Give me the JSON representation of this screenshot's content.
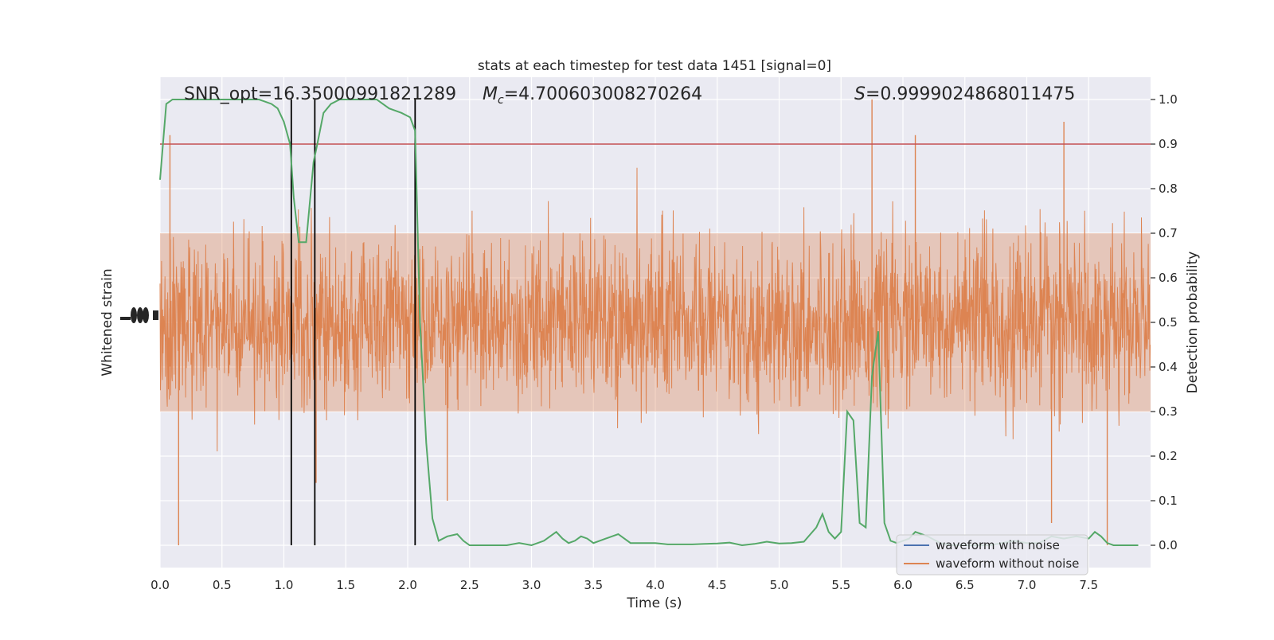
{
  "chart_data": {
    "type": "line",
    "title": "stats at each timestep for test data 1451 [signal=0]",
    "xlabel": "Time (s)",
    "ylabel_left": "Whitened strain",
    "ylabel_right": "Detection probability",
    "xlim": [
      0,
      8
    ],
    "ylim_right": [
      -0.05,
      1.05
    ],
    "grid": true,
    "x_ticks": [
      "0.0",
      "0.5",
      "1.0",
      "1.5",
      "2.0",
      "2.5",
      "3.0",
      "3.5",
      "4.0",
      "4.5",
      "5.0",
      "5.5",
      "6.0",
      "6.5",
      "7.0",
      "7.5"
    ],
    "y_ticks_right": [
      "0.0",
      "0.1",
      "0.2",
      "0.3",
      "0.4",
      "0.5",
      "0.6",
      "0.7",
      "0.8",
      "0.9",
      "1.0"
    ],
    "annotations": {
      "snr": "SNR_opt=16.35000991821289",
      "mc_symbol": "M",
      "mc_sub": "c",
      "mc_value": "=4.700603008270264",
      "s_symbol": "S",
      "s_value": "=0.9999024868011475"
    },
    "threshold": 0.9,
    "vertical_lines_x": [
      1.06,
      1.25,
      2.06
    ],
    "legend": {
      "position": "lower right",
      "entries": [
        {
          "label": "waveform with noise",
          "color": "#4c72b0"
        },
        {
          "label": "waveform without noise",
          "color": "#dd8452"
        }
      ]
    },
    "series": [
      {
        "name": "waveform without noise",
        "color": "#dd8452",
        "envelope": "dense noise centered at 0.5, typical peaks 0.3–0.8, extremes near 0.0 and 1.0"
      },
      {
        "name": "detection probability",
        "color": "#55a868",
        "x": [
          0.0,
          0.05,
          0.1,
          0.2,
          0.3,
          0.4,
          0.5,
          0.6,
          0.7,
          0.8,
          0.9,
          0.95,
          1.0,
          1.05,
          1.08,
          1.12,
          1.18,
          1.24,
          1.27,
          1.32,
          1.38,
          1.45,
          1.55,
          1.65,
          1.75,
          1.85,
          1.95,
          2.02,
          2.06,
          2.1,
          2.15,
          2.2,
          2.25,
          2.32,
          2.4,
          2.45,
          2.5,
          2.6,
          2.7,
          2.8,
          2.9,
          3.0,
          3.1,
          3.15,
          3.2,
          3.25,
          3.3,
          3.35,
          3.4,
          3.45,
          3.5,
          3.55,
          3.6,
          3.65,
          3.7,
          3.8,
          3.9,
          4.0,
          4.1,
          4.2,
          4.3,
          4.4,
          4.5,
          4.6,
          4.7,
          4.8,
          4.9,
          5.0,
          5.1,
          5.2,
          5.3,
          5.35,
          5.4,
          5.45,
          5.5,
          5.55,
          5.6,
          5.65,
          5.7,
          5.75,
          5.8,
          5.85,
          5.9,
          5.95,
          6.0,
          6.05,
          6.1,
          6.2,
          6.3,
          6.4,
          6.5,
          6.6,
          6.7,
          6.8,
          6.9,
          7.0,
          7.1,
          7.2,
          7.3,
          7.4,
          7.5,
          7.55,
          7.6,
          7.65,
          7.7,
          7.8,
          7.9
        ],
        "y": [
          0.82,
          0.99,
          1.0,
          1.0,
          1.0,
          1.0,
          1.0,
          1.0,
          1.0,
          1.0,
          0.99,
          0.98,
          0.95,
          0.9,
          0.78,
          0.68,
          0.68,
          0.86,
          0.9,
          0.97,
          0.99,
          1.0,
          1.0,
          1.0,
          1.0,
          0.98,
          0.97,
          0.96,
          0.93,
          0.5,
          0.23,
          0.06,
          0.01,
          0.02,
          0.025,
          0.01,
          0.0,
          0.0,
          0.0,
          0.0,
          0.005,
          0.0,
          0.01,
          0.02,
          0.03,
          0.015,
          0.005,
          0.01,
          0.02,
          0.015,
          0.005,
          0.01,
          0.015,
          0.02,
          0.025,
          0.005,
          0.005,
          0.005,
          0.002,
          0.002,
          0.002,
          0.003,
          0.004,
          0.006,
          0.0,
          0.003,
          0.008,
          0.004,
          0.005,
          0.008,
          0.04,
          0.07,
          0.03,
          0.015,
          0.03,
          0.3,
          0.28,
          0.05,
          0.04,
          0.38,
          0.48,
          0.05,
          0.01,
          0.005,
          0.01,
          0.015,
          0.03,
          0.02,
          0.005,
          0.0,
          0.0,
          0.0,
          0.0,
          0.005,
          0.01,
          0.005,
          0.005,
          0.02,
          0.015,
          0.02,
          0.015,
          0.03,
          0.02,
          0.005,
          0.0,
          0.0,
          0.0
        ]
      }
    ]
  }
}
